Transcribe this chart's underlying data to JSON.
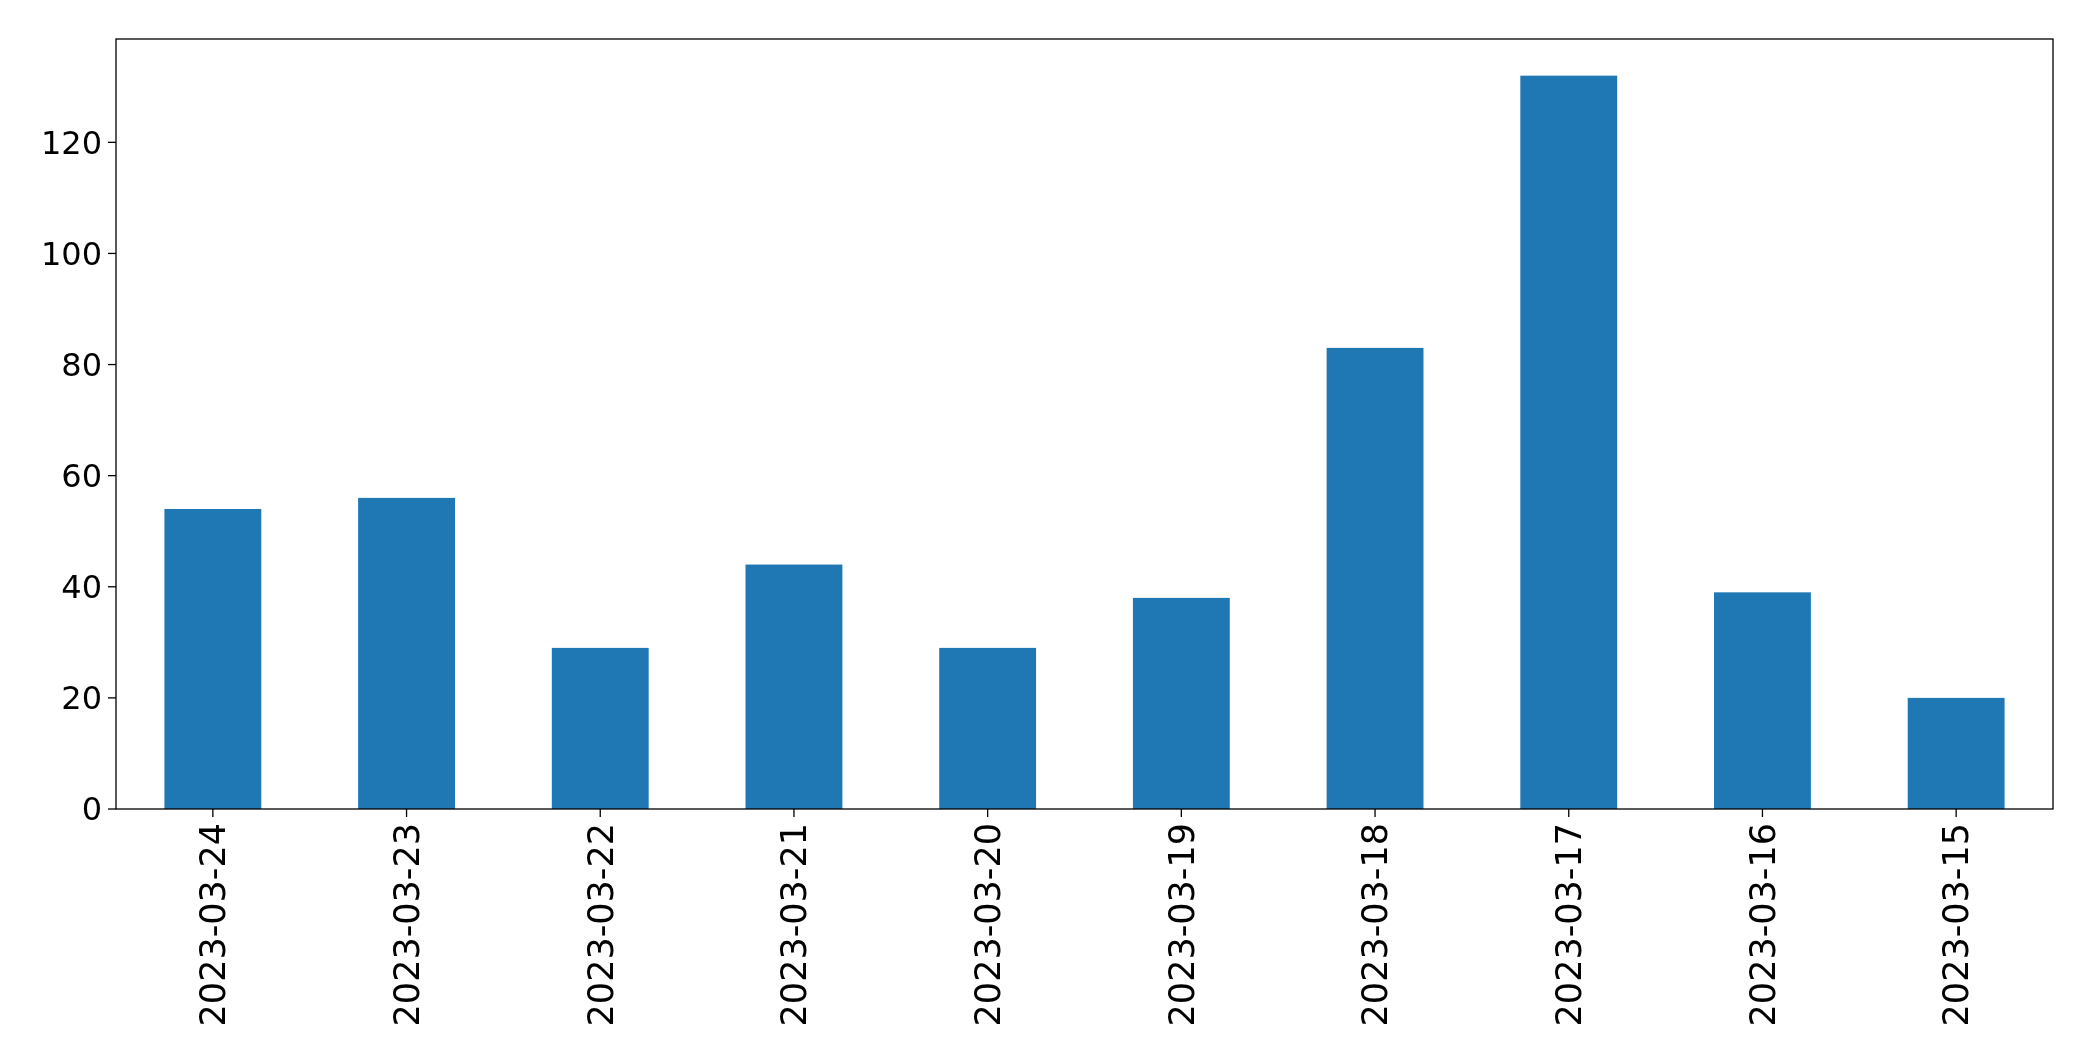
{
  "chart_data": {
    "type": "bar",
    "categories": [
      "2023-03-24",
      "2023-03-23",
      "2023-03-22",
      "2023-03-21",
      "2023-03-20",
      "2023-03-19",
      "2023-03-18",
      "2023-03-17",
      "2023-03-16",
      "2023-03-15"
    ],
    "values": [
      54,
      56,
      29,
      44,
      29,
      38,
      83,
      132,
      39,
      20
    ],
    "color": "#1f77b4",
    "ylim": [
      0,
      138.6
    ],
    "yticks": [
      0,
      20,
      40,
      60,
      80,
      100,
      120
    ],
    "grid": false
  }
}
